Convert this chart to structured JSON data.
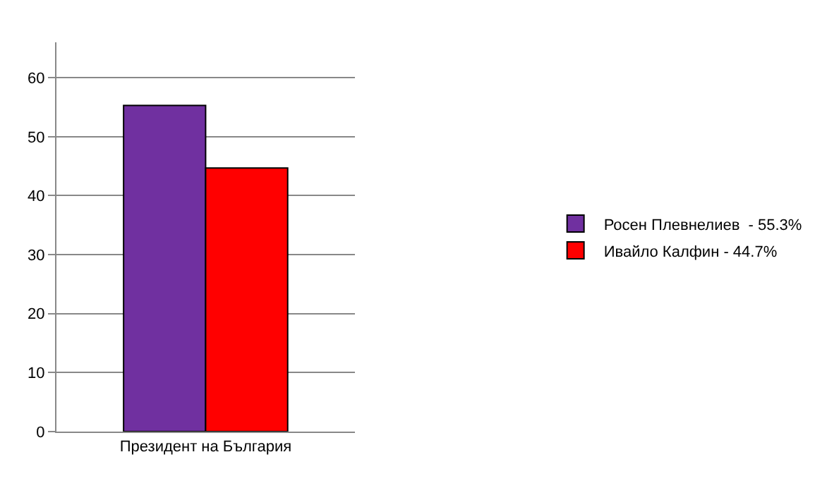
{
  "chart_data": {
    "type": "bar",
    "categories": [
      "Президент на България"
    ],
    "series": [
      {
        "name": "Росен Плевнелиев  - 55.3%",
        "color": "#7030a0",
        "values": [
          55.3
        ]
      },
      {
        "name": "Ивайло Калфин - 44.7%",
        "color": "#ff0000",
        "values": [
          44.7
        ]
      }
    ],
    "ylim": [
      0,
      66
    ],
    "yticks": [
      0,
      10,
      20,
      30,
      40,
      50,
      60
    ],
    "grid": "y",
    "legend": "right"
  }
}
